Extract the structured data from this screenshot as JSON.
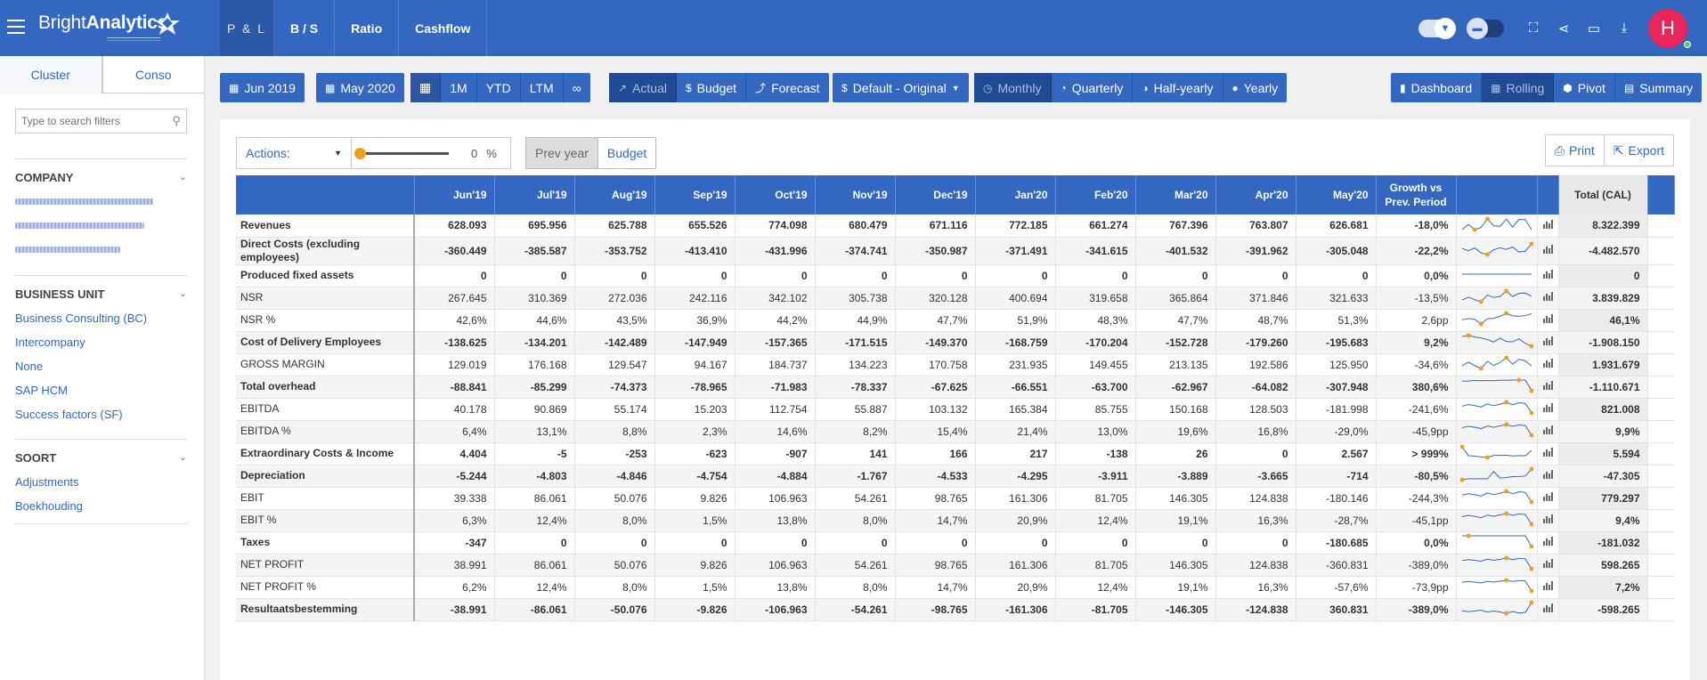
{
  "app": {
    "logo_regular": "Bright",
    "logo_bold": "Analytics"
  },
  "nav": {
    "tabs": [
      "P & L",
      "B / S",
      "Ratio",
      "Cashflow"
    ]
  },
  "user": {
    "initial": "H"
  },
  "sidebar": {
    "tabs": [
      "Cluster",
      "Conso"
    ],
    "search": {
      "placeholder": "Type to search filters"
    },
    "sections": [
      {
        "title": "COMPANY",
        "items": []
      },
      {
        "title": "BUSINESS UNIT",
        "items": [
          "Business Consulting (BC)",
          "Intercompany",
          "None",
          "SAP HCM",
          "Success factors (SF)"
        ]
      },
      {
        "title": "SOORT",
        "items": [
          "Adjustments",
          "Boekhouding"
        ]
      }
    ]
  },
  "toolbar": {
    "from_date": "Jun 2019",
    "to_date": "May 2020",
    "periods": [
      "1M",
      "YTD",
      "LTM"
    ],
    "scenarios": [
      "Actual",
      "Budget",
      "Forecast"
    ],
    "version": "Default - Original",
    "granularity": [
      "Monthly",
      "Quarterly",
      "Half-yearly",
      "Yearly"
    ],
    "views": [
      "Dashboard",
      "Rolling",
      "Pivot",
      "Summary"
    ]
  },
  "report": {
    "actions_label": "Actions:",
    "slider_value": "0",
    "slider_unit": "%",
    "compare": [
      "Prev year",
      "Budget"
    ],
    "print_label": "Print",
    "export_label": "Export",
    "columns": [
      "Jun'19",
      "Jul'19",
      "Aug'19",
      "Sep'19",
      "Oct'19",
      "Nov'19",
      "Dec'19",
      "Jan'20",
      "Feb'20",
      "Mar'20",
      "Apr'20",
      "May'20"
    ],
    "growth_header": "Growth vs Prev. Period",
    "total_header": "Total (CAL)",
    "rows": [
      {
        "label": "Revenues",
        "bold": true,
        "values": [
          "628.093",
          "695.956",
          "625.788",
          "655.526",
          "774.098",
          "680.479",
          "671.116",
          "772.185",
          "661.274",
          "767.396",
          "763.807",
          "626.681"
        ],
        "growth": "-18,0%",
        "total": "8.322.399",
        "spark": [
          628,
          696,
          626,
          656,
          774,
          680,
          671,
          772,
          661,
          767,
          764,
          627
        ]
      },
      {
        "label": "Direct Costs (excluding employees)",
        "bold": true,
        "values": [
          "-360.449",
          "-385.587",
          "-353.752",
          "-413.410",
          "-431.996",
          "-374.741",
          "-350.987",
          "-371.491",
          "-341.615",
          "-401.532",
          "-391.962",
          "-305.048"
        ],
        "growth": "-22,2%",
        "total": "-4.482.570",
        "spark": [
          -360,
          -386,
          -354,
          -413,
          -432,
          -375,
          -351,
          -371,
          -342,
          -402,
          -392,
          -305
        ]
      },
      {
        "label": "Produced fixed assets",
        "bold": true,
        "values": [
          "0",
          "0",
          "0",
          "0",
          "0",
          "0",
          "0",
          "0",
          "0",
          "0",
          "0",
          "0"
        ],
        "growth": "0,0%",
        "total": "0",
        "spark": [
          0,
          0,
          0,
          0,
          0,
          0,
          0,
          0,
          0,
          0,
          0,
          0
        ]
      },
      {
        "label": "NSR",
        "bold": false,
        "values": [
          "267.645",
          "310.369",
          "272.036",
          "242.116",
          "342.102",
          "305.738",
          "320.128",
          "400.694",
          "319.658",
          "365.864",
          "371.846",
          "321.633"
        ],
        "growth": "-13,5%",
        "total": "3.839.829",
        "spark": [
          268,
          310,
          272,
          242,
          342,
          306,
          320,
          401,
          320,
          366,
          372,
          322
        ]
      },
      {
        "label": "NSR %",
        "bold": false,
        "values": [
          "42,6%",
          "44,6%",
          "43,5%",
          "36,9%",
          "44,2%",
          "44,9%",
          "47,7%",
          "51,9%",
          "48,3%",
          "47,7%",
          "48,7%",
          "51,3%"
        ],
        "growth": "2,6pp",
        "total": "46,1%",
        "spark": [
          42.6,
          44.6,
          43.5,
          36.9,
          44.2,
          44.9,
          47.7,
          51.9,
          48.3,
          47.7,
          48.7,
          51.3
        ]
      },
      {
        "label": "Cost of Delivery Employees",
        "bold": true,
        "values": [
          "-138.625",
          "-134.201",
          "-142.489",
          "-147.949",
          "-157.365",
          "-171.515",
          "-149.370",
          "-168.759",
          "-170.204",
          "-152.728",
          "-179.260",
          "-195.683"
        ],
        "growth": "9,2%",
        "total": "-1.908.150",
        "spark": [
          -139,
          -134,
          -142,
          -148,
          -157,
          -172,
          -149,
          -169,
          -170,
          -153,
          -179,
          -196
        ]
      },
      {
        "label": "GROSS MARGIN",
        "bold": false,
        "values": [
          "129.019",
          "176.168",
          "129.547",
          "94.167",
          "184.737",
          "134.223",
          "170.758",
          "231.935",
          "149.455",
          "213.135",
          "192.586",
          "125.950"
        ],
        "growth": "-34,6%",
        "total": "1.931.679",
        "spark": [
          129,
          176,
          130,
          94,
          185,
          134,
          171,
          232,
          149,
          213,
          193,
          126
        ]
      },
      {
        "label": "Total overhead",
        "bold": true,
        "values": [
          "-88.841",
          "-85.299",
          "-74.373",
          "-78.965",
          "-71.983",
          "-78.337",
          "-67.625",
          "-66.551",
          "-63.700",
          "-62.967",
          "-64.082",
          "-307.948"
        ],
        "growth": "380,6%",
        "total": "-1.110.671",
        "spark": [
          -89,
          -85,
          -74,
          -79,
          -72,
          -78,
          -68,
          -67,
          -64,
          -63,
          -64,
          -308
        ]
      },
      {
        "label": "EBITDA",
        "bold": false,
        "values": [
          "40.178",
          "90.869",
          "55.174",
          "15.203",
          "112.754",
          "55.887",
          "103.132",
          "165.384",
          "85.755",
          "150.168",
          "128.503",
          "-181.998"
        ],
        "growth": "-241,6%",
        "total": "821.008",
        "spark": [
          40,
          91,
          55,
          15,
          113,
          56,
          103,
          165,
          86,
          150,
          129,
          -182
        ]
      },
      {
        "label": "EBITDA %",
        "bold": false,
        "values": [
          "6,4%",
          "13,1%",
          "8,8%",
          "2,3%",
          "14,6%",
          "8,2%",
          "15,4%",
          "21,4%",
          "13,0%",
          "19,6%",
          "16,8%",
          "-29,0%"
        ],
        "growth": "-45,9pp",
        "total": "9,9%",
        "spark": [
          6.4,
          13.1,
          8.8,
          2.3,
          14.6,
          8.2,
          15.4,
          21.4,
          13,
          19.6,
          16.8,
          -29
        ]
      },
      {
        "label": "Extraordinary Costs & Income",
        "bold": true,
        "values": [
          "4.404",
          "-5",
          "-253",
          "-623",
          "-907",
          "141",
          "166",
          "217",
          "-138",
          "26",
          "0",
          "2.567"
        ],
        "growth": "> 999%",
        "total": "5.594",
        "spark": [
          4404,
          -5,
          -253,
          -623,
          -907,
          141,
          166,
          217,
          -138,
          26,
          0,
          2567
        ]
      },
      {
        "label": "Depreciation",
        "bold": true,
        "values": [
          "-5.244",
          "-4.803",
          "-4.846",
          "-4.754",
          "-4.884",
          "-1.767",
          "-4.533",
          "-4.295",
          "-3.911",
          "-3.889",
          "-3.665",
          "-714"
        ],
        "growth": "-80,5%",
        "total": "-47.305",
        "spark": [
          -5244,
          -4803,
          -4846,
          -4754,
          -4884,
          -1767,
          -4533,
          -4295,
          -3911,
          -3889,
          -3665,
          -714
        ]
      },
      {
        "label": "EBIT",
        "bold": false,
        "values": [
          "39.338",
          "86.061",
          "50.076",
          "9.826",
          "106.963",
          "54.261",
          "98.765",
          "161.306",
          "81.705",
          "146.305",
          "124.838",
          "-180.146"
        ],
        "growth": "-244,3%",
        "total": "779.297",
        "spark": [
          39,
          86,
          50,
          10,
          107,
          54,
          99,
          161,
          82,
          146,
          125,
          -180
        ]
      },
      {
        "label": "EBIT %",
        "bold": false,
        "values": [
          "6,3%",
          "12,4%",
          "8,0%",
          "1,5%",
          "13,8%",
          "8,0%",
          "14,7%",
          "20,9%",
          "12,4%",
          "19,1%",
          "16,3%",
          "-28,7%"
        ],
        "growth": "-45,1pp",
        "total": "9,4%",
        "spark": [
          6.3,
          12.4,
          8,
          1.5,
          13.8,
          8,
          14.7,
          20.9,
          12.4,
          19.1,
          16.3,
          -28.7
        ]
      },
      {
        "label": "Taxes",
        "bold": true,
        "values": [
          "-347",
          "0",
          "0",
          "0",
          "0",
          "0",
          "0",
          "0",
          "0",
          "0",
          "0",
          "-180.685"
        ],
        "growth": "0,0%",
        "total": "-181.032",
        "spark": [
          -347,
          0,
          0,
          0,
          0,
          0,
          0,
          0,
          0,
          0,
          0,
          -180685
        ]
      },
      {
        "label": "NET PROFIT",
        "bold": false,
        "values": [
          "38.991",
          "86.061",
          "50.076",
          "9.826",
          "106.963",
          "54.261",
          "98.765",
          "161.306",
          "81.705",
          "146.305",
          "124.838",
          "-360.831"
        ],
        "growth": "-389,0%",
        "total": "598.265",
        "spark": [
          39,
          86,
          50,
          10,
          107,
          54,
          99,
          161,
          82,
          146,
          125,
          -361
        ]
      },
      {
        "label": "NET PROFIT %",
        "bold": false,
        "values": [
          "6,2%",
          "12,4%",
          "8,0%",
          "1,5%",
          "13,8%",
          "8,0%",
          "14,7%",
          "20,9%",
          "12,4%",
          "19,1%",
          "16,3%",
          "-57,6%"
        ],
        "growth": "-73,9pp",
        "total": "7,2%",
        "spark": [
          6.2,
          12.4,
          8,
          1.5,
          13.8,
          8,
          14.7,
          20.9,
          12.4,
          19.1,
          16.3,
          -57.6
        ]
      },
      {
        "label": "Resultaatsbestemming",
        "bold": true,
        "values": [
          "-38.991",
          "-86.061",
          "-50.076",
          "-9.826",
          "-106.963",
          "-54.261",
          "-98.765",
          "-161.306",
          "-81.705",
          "-146.305",
          "-124.838",
          "360.831"
        ],
        "growth": "-389,0%",
        "total": "-598.265",
        "spark": [
          -39,
          -86,
          -50,
          -10,
          -107,
          -54,
          -99,
          -161,
          -82,
          -146,
          -125,
          361
        ]
      }
    ]
  },
  "colors": {
    "primary": "#3468c0",
    "accent": "#f0a020",
    "avatar": "#e8265c"
  }
}
